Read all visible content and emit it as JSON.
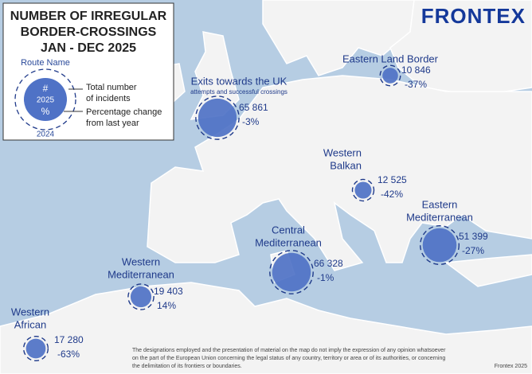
{
  "header": {
    "title": [
      "NUMBER OF IRREGULAR",
      "BORDER-CROSSINGS",
      "JAN - DEC 2025"
    ],
    "logo": "FRONTEX"
  },
  "legend": {
    "route_name": "Route Name",
    "symbol": [
      "#",
      "2025",
      "%"
    ],
    "total": [
      "Total number",
      "of incidents"
    ],
    "change": [
      "Percentage change",
      "from last year"
    ],
    "previous": "2024"
  },
  "routes": [
    {
      "name": [
        "Exits towards the UK"
      ],
      "subtitle": "attempts and successful crossings",
      "value": 65861,
      "value_label": "65 861",
      "change": -3,
      "change_label": "-3%"
    },
    {
      "name": [
        "Eastern Land Border"
      ],
      "value": 10846,
      "value_label": "10 846",
      "change": -37,
      "change_label": "-37%"
    },
    {
      "name": [
        "Western",
        "Balkan"
      ],
      "value": 12525,
      "value_label": "12 525",
      "change": -42,
      "change_label": "-42%"
    },
    {
      "name": [
        "Eastern",
        "Mediterranean"
      ],
      "value": 51399,
      "value_label": "51 399",
      "change": -27,
      "change_label": "-27%"
    },
    {
      "name": [
        "Central",
        "Mediterranean"
      ],
      "value": 66328,
      "value_label": "66 328",
      "change": -1,
      "change_label": "-1%"
    },
    {
      "name": [
        "Western",
        "Mediterranean"
      ],
      "value": 19403,
      "value_label": "19 403",
      "change": 14,
      "change_label": "14%"
    },
    {
      "name": [
        "Western",
        "African"
      ],
      "value": 17280,
      "value_label": "17 280",
      "change": -63,
      "change_label": "-63%"
    }
  ],
  "footer": {
    "disclaimer": [
      "The designations employed and the presentation of material on the map do not imply the expression of any opinion whatsoever",
      "on the part of the European Union concerning the legal status of any country, territory or area or of its authorities, or concerning",
      "the delimitation of its frontiers or boundaries."
    ],
    "credit": "Frontex 2025"
  }
}
